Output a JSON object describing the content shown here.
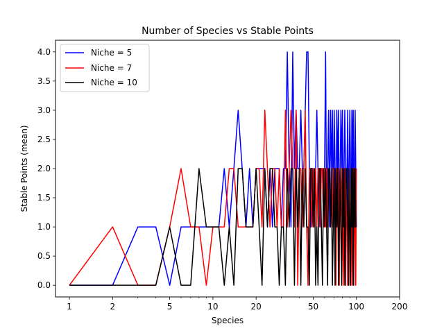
{
  "chart_data": {
    "type": "line",
    "title": "Number of Species vs Stable Points",
    "xlabel": "Species",
    "ylabel": "Stable Points (mean)",
    "xscale": "log",
    "xlim": [
      0.8,
      200
    ],
    "ylim": [
      -0.2,
      4.2
    ],
    "xticks": [
      1,
      2,
      5,
      10,
      20,
      50,
      100,
      200
    ],
    "xtick_labels": [
      "1",
      "2",
      "5",
      "10",
      "20",
      "50",
      "100",
      "200"
    ],
    "yticks": [
      0,
      0.5,
      1,
      1.5,
      2,
      2.5,
      3,
      3.5,
      4
    ],
    "ytick_labels": [
      "0.0",
      "0.5",
      "1.0",
      "1.5",
      "2.0",
      "2.5",
      "3.0",
      "3.5",
      "4.0"
    ],
    "grid": false,
    "legend_position": "top-left",
    "series": [
      {
        "name": "Niche = 5",
        "color": "#0000ff",
        "x": [
          1,
          2,
          3,
          4,
          5,
          6,
          7,
          8,
          9,
          10,
          11,
          12,
          13,
          14,
          15,
          16,
          17,
          18,
          19,
          20,
          21,
          22,
          23,
          24,
          25,
          26,
          27,
          28,
          29,
          30,
          31,
          32,
          33,
          34,
          35,
          36,
          37,
          38,
          39,
          40,
          41,
          42,
          43,
          44,
          45,
          46,
          47,
          48,
          49,
          50,
          51,
          52,
          53,
          54,
          55,
          56,
          57,
          58,
          59,
          60,
          61,
          62,
          63,
          64,
          65,
          66,
          67,
          68,
          69,
          70,
          71,
          72,
          73,
          74,
          75,
          76,
          77,
          78,
          79,
          80,
          81,
          82,
          83,
          84,
          85,
          86,
          87,
          88,
          89,
          90,
          91,
          92,
          93,
          94,
          95,
          96,
          97,
          98,
          99,
          100
        ],
        "values": [
          0,
          0,
          1,
          1,
          0,
          1,
          1,
          1,
          1,
          1,
          1,
          2,
          1,
          2,
          3,
          2,
          1,
          2,
          1,
          2,
          2,
          2,
          2,
          1,
          2,
          1,
          2,
          2,
          2,
          1,
          2,
          2,
          4,
          2,
          1,
          4,
          2,
          3,
          2,
          2,
          3,
          2,
          2,
          3,
          4,
          4,
          2,
          1,
          2,
          2,
          1,
          2,
          3,
          2,
          1,
          2,
          2,
          2,
          1,
          2,
          4,
          1,
          2,
          3,
          1,
          3,
          2,
          3,
          1,
          3,
          2,
          1,
          3,
          2,
          3,
          1,
          2,
          3,
          2,
          3,
          1,
          2,
          3,
          2,
          1,
          2,
          3,
          1,
          2,
          3,
          2,
          1,
          3,
          2,
          3,
          1,
          2,
          3,
          2,
          1
        ]
      },
      {
        "name": "Niche = 7",
        "color": "#ff0000",
        "x": [
          1,
          2,
          3,
          4,
          5,
          6,
          7,
          8,
          9,
          10,
          11,
          12,
          13,
          14,
          15,
          16,
          17,
          18,
          19,
          20,
          21,
          22,
          23,
          24,
          25,
          26,
          27,
          28,
          29,
          30,
          31,
          32,
          33,
          34,
          35,
          36,
          37,
          38,
          39,
          40,
          41,
          42,
          43,
          44,
          45,
          46,
          47,
          48,
          49,
          50,
          51,
          52,
          53,
          54,
          55,
          56,
          57,
          58,
          59,
          60,
          61,
          62,
          63,
          64,
          65,
          66,
          67,
          68,
          69,
          70,
          71,
          72,
          73,
          74,
          75,
          76,
          77,
          78,
          79,
          80,
          81,
          82,
          83,
          84,
          85,
          86,
          87,
          88,
          89,
          90,
          91,
          92,
          93,
          94,
          95,
          96,
          97,
          98,
          99,
          100
        ],
        "values": [
          0,
          1,
          0,
          0,
          1,
          2,
          1,
          1,
          0,
          1,
          1,
          1,
          2,
          2,
          1,
          1,
          1,
          1,
          1,
          2,
          2,
          1,
          3,
          2,
          1,
          2,
          2,
          1,
          2,
          1,
          1,
          3,
          1,
          2,
          3,
          2,
          1,
          3,
          0,
          2,
          2,
          1,
          2,
          3,
          1,
          0,
          2,
          2,
          1,
          2,
          1,
          2,
          1,
          2,
          2,
          1,
          2,
          2,
          1,
          2,
          1,
          2,
          1,
          2,
          2,
          1,
          2,
          1,
          2,
          2,
          1,
          0,
          2,
          1,
          2,
          0,
          2,
          1,
          2,
          2,
          0,
          1,
          2,
          0,
          1,
          2,
          0,
          1,
          2,
          0,
          1,
          2,
          0,
          1,
          2,
          0,
          2,
          1,
          0,
          2
        ]
      },
      {
        "name": "Niche = 10",
        "color": "#000000",
        "x": [
          1,
          2,
          3,
          4,
          5,
          6,
          7,
          8,
          9,
          10,
          11,
          12,
          13,
          14,
          15,
          16,
          17,
          18,
          19,
          20,
          21,
          22,
          23,
          24,
          25,
          26,
          27,
          28,
          29,
          30,
          31,
          32,
          33,
          34,
          35,
          36,
          37,
          38,
          39,
          40,
          41,
          42,
          43,
          44,
          45,
          46,
          47,
          48,
          49,
          50,
          51,
          52,
          53,
          54,
          55,
          56,
          57,
          58,
          59,
          60,
          61,
          62,
          63,
          64,
          65,
          66,
          67,
          68,
          69,
          70,
          71,
          72,
          73,
          74,
          75,
          76,
          77,
          78,
          79,
          80,
          81,
          82,
          83,
          84,
          85,
          86,
          87,
          88,
          89,
          90,
          91,
          92,
          93,
          94,
          95,
          96,
          97,
          98,
          99,
          100
        ],
        "values": [
          0,
          0,
          0,
          0,
          1,
          0,
          0,
          2,
          1,
          1,
          1,
          0,
          1,
          0,
          2,
          2,
          1,
          1,
          1,
          2,
          1,
          0,
          2,
          1,
          2,
          2,
          1,
          1,
          0,
          1,
          1,
          0,
          2,
          1,
          2,
          2,
          0,
          2,
          1,
          2,
          0,
          2,
          1,
          2,
          1,
          1,
          0,
          2,
          2,
          1,
          2,
          0,
          1,
          0,
          2,
          2,
          1,
          0,
          2,
          1,
          2,
          1,
          0,
          2,
          2,
          1,
          2,
          0,
          1,
          2,
          0,
          2,
          1,
          2,
          0,
          1,
          2,
          1,
          0,
          2,
          1,
          2,
          0,
          1,
          2,
          2,
          1,
          0,
          2,
          1,
          0,
          2,
          1,
          2,
          0,
          2,
          1,
          2,
          1,
          1
        ]
      }
    ]
  }
}
